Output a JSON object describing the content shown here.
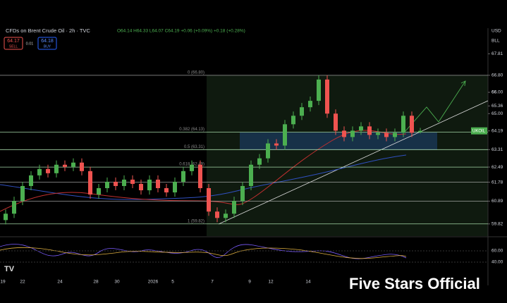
{
  "header": {
    "symbol": "CFDs on Brent Crude Oil · 2h · TVC",
    "ohlc": "O64.14 H64.33 L64.07 C64.19 +0.06 (+0.09%) +0.18 (+0.28%)",
    "sell_price": "64.17",
    "sell_label": "SELL",
    "buy_price": "64.18",
    "buy_label": "BUY",
    "spread": "0.01",
    "currency": "USD",
    "unit": "BLL",
    "ticker_tag": "UKOIL"
  },
  "chart_data": {
    "type": "candlestick",
    "open": [
      60.0,
      60.3,
      60.9,
      61.6,
      62.1,
      62.4,
      62.2,
      62.6,
      62.5,
      62.7,
      62.3,
      61.2,
      61.5,
      61.8,
      61.6,
      61.9,
      61.7,
      61.4,
      61.9,
      61.5,
      61.3,
      61.8,
      62.3,
      62.6,
      61.5,
      60.4,
      60.1,
      60.3,
      60.9,
      61.6,
      62.6,
      62.9,
      63.6,
      63.5,
      64.5,
      64.9,
      65.3,
      65.6,
      66.6,
      65.0,
      64.2,
      63.9,
      64.2,
      64.4,
      64.0,
      64.1,
      63.9,
      64.1,
      64.9,
      64.14
    ],
    "high": [
      60.5,
      61.1,
      61.8,
      62.3,
      62.6,
      62.6,
      62.8,
      62.8,
      62.9,
      62.9,
      62.5,
      61.7,
      62.0,
      62.0,
      62.1,
      62.1,
      61.9,
      62.1,
      62.1,
      61.7,
      62.0,
      62.5,
      62.8,
      62.8,
      61.7,
      60.6,
      60.5,
      61.1,
      61.8,
      62.8,
      63.1,
      63.8,
      63.8,
      64.7,
      65.1,
      65.5,
      65.8,
      66.8,
      66.8,
      65.2,
      64.4,
      64.4,
      64.6,
      64.6,
      64.3,
      64.3,
      64.3,
      65.1,
      65.1,
      64.33
    ],
    "low": [
      59.8,
      60.1,
      60.7,
      61.4,
      61.9,
      62.0,
      62.0,
      62.3,
      62.3,
      62.1,
      61.0,
      61.0,
      61.3,
      61.4,
      61.4,
      61.5,
      61.2,
      61.2,
      61.3,
      61.1,
      61.1,
      61.6,
      62.1,
      61.3,
      60.2,
      59.9,
      59.9,
      60.1,
      60.7,
      61.4,
      62.4,
      62.7,
      63.3,
      63.3,
      64.3,
      64.7,
      65.1,
      65.4,
      64.8,
      64.0,
      63.7,
      63.7,
      64.0,
      63.8,
      63.8,
      63.7,
      63.7,
      63.9,
      63.9,
      64.07
    ],
    "close": [
      60.3,
      60.9,
      61.6,
      62.1,
      62.4,
      62.2,
      62.6,
      62.5,
      62.7,
      62.3,
      61.2,
      61.5,
      61.8,
      61.6,
      61.9,
      61.7,
      61.4,
      61.9,
      61.5,
      61.3,
      61.8,
      62.3,
      62.6,
      61.5,
      60.4,
      60.1,
      60.3,
      60.9,
      61.6,
      62.6,
      62.9,
      63.6,
      63.5,
      64.5,
      64.9,
      65.3,
      65.6,
      66.6,
      65.0,
      64.2,
      63.9,
      64.2,
      64.4,
      64.0,
      64.1,
      63.9,
      64.1,
      64.9,
      64.1,
      64.19
    ],
    "up_color": "#4caf50",
    "down_color": "#ef5350",
    "x_labels": [
      "19",
      "22",
      "24",
      "28",
      "30",
      "2026",
      "5",
      "7",
      "9",
      "12",
      "14"
    ],
    "ylim": [
      59.25,
      68.35
    ],
    "yticks": [
      67.81,
      {
        "value": 66.8,
        "label": "66.80"
      },
      66.0,
      {
        "value": 66.0,
        "label": "66.00"
      },
      65.36,
      {
        "value": 65.0,
        "label": "65.00"
      },
      64.19,
      63.31,
      62.49,
      61.78,
      60.89,
      59.82
    ],
    "fib_levels": [
      {
        "label": "0 (66.80)",
        "value": 66.8
      },
      {
        "label": "0.382 (64.13)",
        "value": 64.13
      },
      {
        "label": "0.5 (63.31)",
        "value": 63.31
      },
      {
        "label": "0.618 (62.49)",
        "value": 62.49
      },
      {
        "label": "1 (59.82)",
        "value": 59.82
      }
    ],
    "levels": [
      61.78,
      60.89
    ],
    "y2ticks": [
      {
        "value": 60,
        "label": "60.00"
      },
      {
        "value": 40,
        "label": "40.00"
      }
    ],
    "y2lim": [
      20,
      80
    ]
  },
  "watermark": "Five Stars Official"
}
